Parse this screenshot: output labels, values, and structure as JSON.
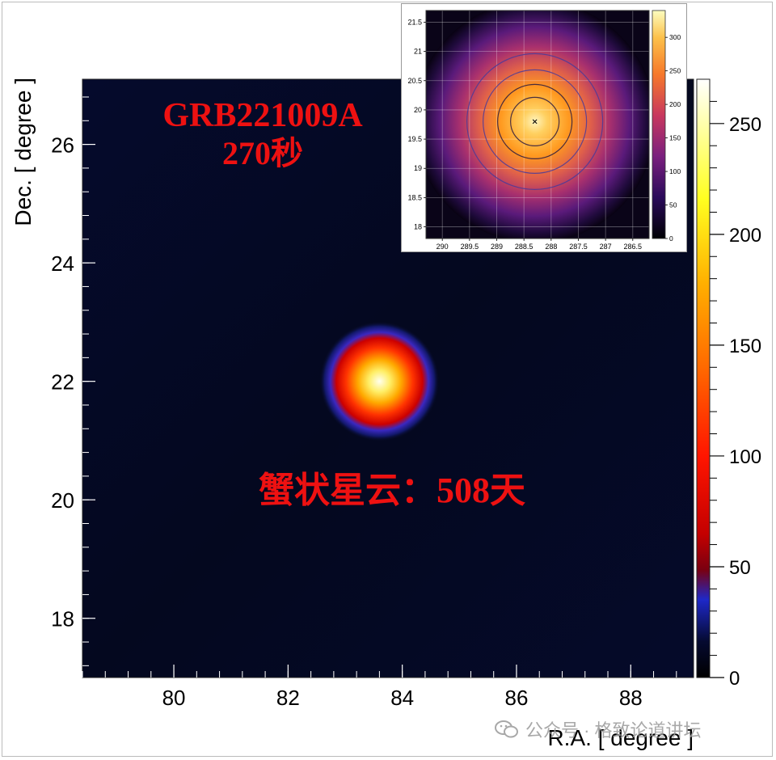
{
  "chart_data": [
    {
      "type": "heatmap",
      "xlabel": "R.A. [ degree ]",
      "ylabel": "Dec. [ degree ]",
      "xlim": [
        78.4,
        89.1
      ],
      "ylim": [
        17.0,
        27.1
      ],
      "x_ticks": [
        "80",
        "82",
        "84",
        "86",
        "88"
      ],
      "y_ticks": [
        "18",
        "20",
        "22",
        "24",
        "26"
      ],
      "colorbar": {
        "ticks": [
          "0",
          "50",
          "100",
          "150",
          "200",
          "250"
        ],
        "range": [
          0,
          270
        ]
      },
      "source": {
        "ra": 83.6,
        "dec": 22.0,
        "peak": 265
      },
      "annotations": {
        "grb_title": "GRB221009A",
        "grb_time": "270秒",
        "crab_label": "蟹状星云：508天"
      },
      "colors": {
        "low": "#000000",
        "mid_blue": "#1e28c8",
        "mid_red": "#e6000a",
        "high": "#ffffee"
      }
    },
    {
      "type": "heatmap",
      "xlim": [
        290.3,
        286.2
      ],
      "ylim": [
        17.8,
        21.7
      ],
      "x_ticks": [
        "290",
        "289.5",
        "289",
        "288.5",
        "288",
        "287.5",
        "287",
        "286.5"
      ],
      "y_ticks": [
        "18",
        "18.5",
        "19",
        "19.5",
        "20",
        "20.5",
        "21",
        "21.5"
      ],
      "colorbar": {
        "ticks": [
          "0",
          "50",
          "100",
          "150",
          "200",
          "250",
          "300"
        ],
        "range": [
          0,
          340
        ]
      },
      "source": {
        "ra": 288.3,
        "dec": 19.8
      },
      "colors": {
        "low": "#000000",
        "mid_purple": "#6a1b9a",
        "mid_orange": "#ff8c1a",
        "high": "#fff5c0"
      }
    }
  ],
  "watermark": {
    "text": "公众号 · 格致论道讲坛"
  }
}
